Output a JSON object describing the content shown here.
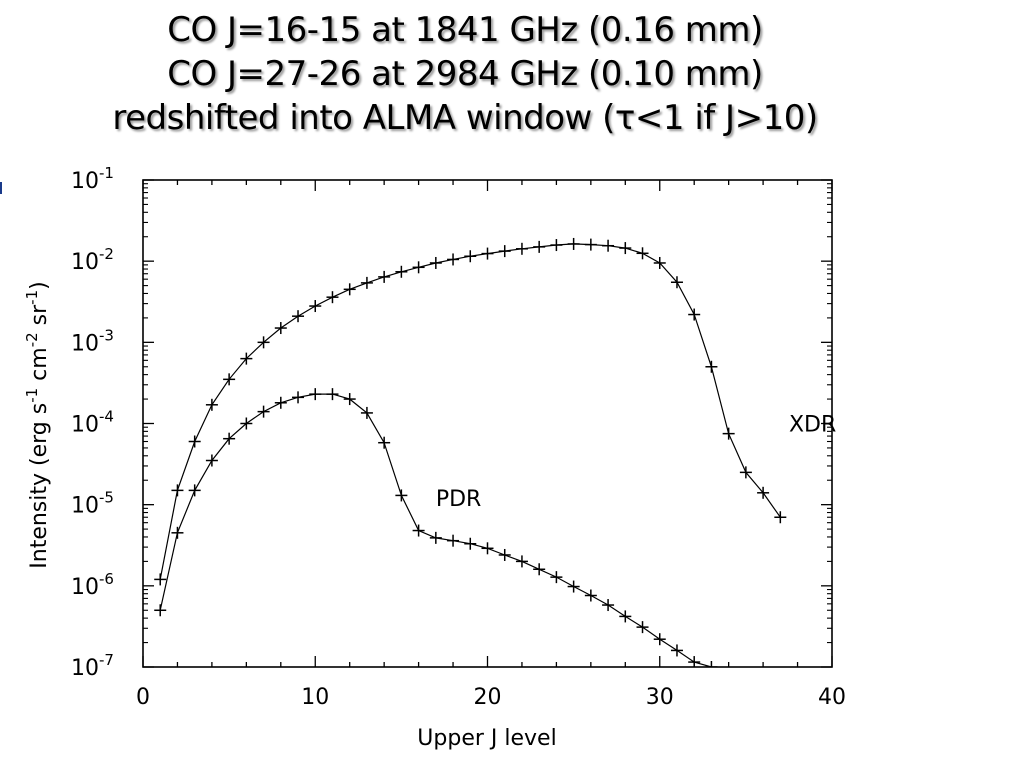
{
  "slide": {
    "title_lines": [
      "CO J=16-15 at 1841 GHz (0.16 mm)",
      "CO J=27-26 at 2984 GHz (0.10 mm)",
      "redshifted into ALMA window  (τ<1 if J>10)"
    ]
  },
  "chart_data": {
    "type": "line",
    "xlabel": "Upper J level",
    "ylabel": "Intensity (erg s⁻¹ cm⁻² sr⁻¹)",
    "xlim": [
      0,
      40
    ],
    "ylim": [
      1e-07,
      0.1
    ],
    "yscale": "log",
    "marker": "+",
    "x_ticks": [
      0,
      10,
      20,
      30,
      40
    ],
    "y_ticks": [
      {
        "base": "10",
        "exp": "-7"
      },
      {
        "base": "10",
        "exp": "-6"
      },
      {
        "base": "10",
        "exp": "-5"
      },
      {
        "base": "10",
        "exp": "-4"
      },
      {
        "base": "10",
        "exp": "-3"
      },
      {
        "base": "10",
        "exp": "-2"
      },
      {
        "base": "10",
        "exp": "-1"
      }
    ],
    "series": [
      {
        "name": "XDR",
        "x": [
          1,
          2,
          3,
          4,
          5,
          6,
          7,
          8,
          9,
          10,
          11,
          12,
          13,
          14,
          15,
          16,
          17,
          18,
          19,
          20,
          21,
          22,
          23,
          24,
          25,
          26,
          27,
          28,
          29,
          30,
          31,
          32,
          33,
          34,
          35,
          36,
          37
        ],
        "y": [
          1.2e-06,
          1.5e-05,
          6e-05,
          0.00017,
          0.00035,
          0.00063,
          0.001,
          0.0015,
          0.0021,
          0.0028,
          0.0036,
          0.0045,
          0.0054,
          0.0064,
          0.0074,
          0.0084,
          0.0095,
          0.0105,
          0.0115,
          0.0124,
          0.0133,
          0.0142,
          0.015,
          0.0158,
          0.0163,
          0.016,
          0.0155,
          0.0145,
          0.0125,
          0.0095,
          0.0055,
          0.0022,
          0.0005,
          7.5e-05,
          2.5e-05,
          1.4e-05,
          7e-06
        ]
      },
      {
        "name": "PDR",
        "x": [
          1,
          2,
          3,
          4,
          5,
          6,
          7,
          8,
          9,
          10,
          11,
          12,
          13,
          14,
          15,
          16,
          17,
          18,
          19,
          20,
          21,
          22,
          23,
          24,
          25,
          26,
          27,
          28,
          29,
          30,
          31,
          32,
          33
        ],
        "y": [
          5e-07,
          4.5e-06,
          1.5e-05,
          3.5e-05,
          6.5e-05,
          0.0001,
          0.00014,
          0.00018,
          0.00021,
          0.00023,
          0.00023,
          0.0002,
          0.000135,
          5.8e-05,
          1.3e-05,
          4.8e-06,
          3.9e-06,
          3.6e-06,
          3.3e-06,
          2.9e-06,
          2.4e-06,
          2e-06,
          1.6e-06,
          1.28e-06,
          9.8e-07,
          7.6e-07,
          5.8e-07,
          4.2e-07,
          3.1e-07,
          2.2e-07,
          1.6e-07,
          1.15e-07,
          1e-07
        ]
      }
    ],
    "annotations": [
      {
        "text": "XDR",
        "x": 37.5,
        "y": 0.0001
      },
      {
        "text": "PDR",
        "x": 17,
        "y": 1.2e-05
      }
    ]
  }
}
